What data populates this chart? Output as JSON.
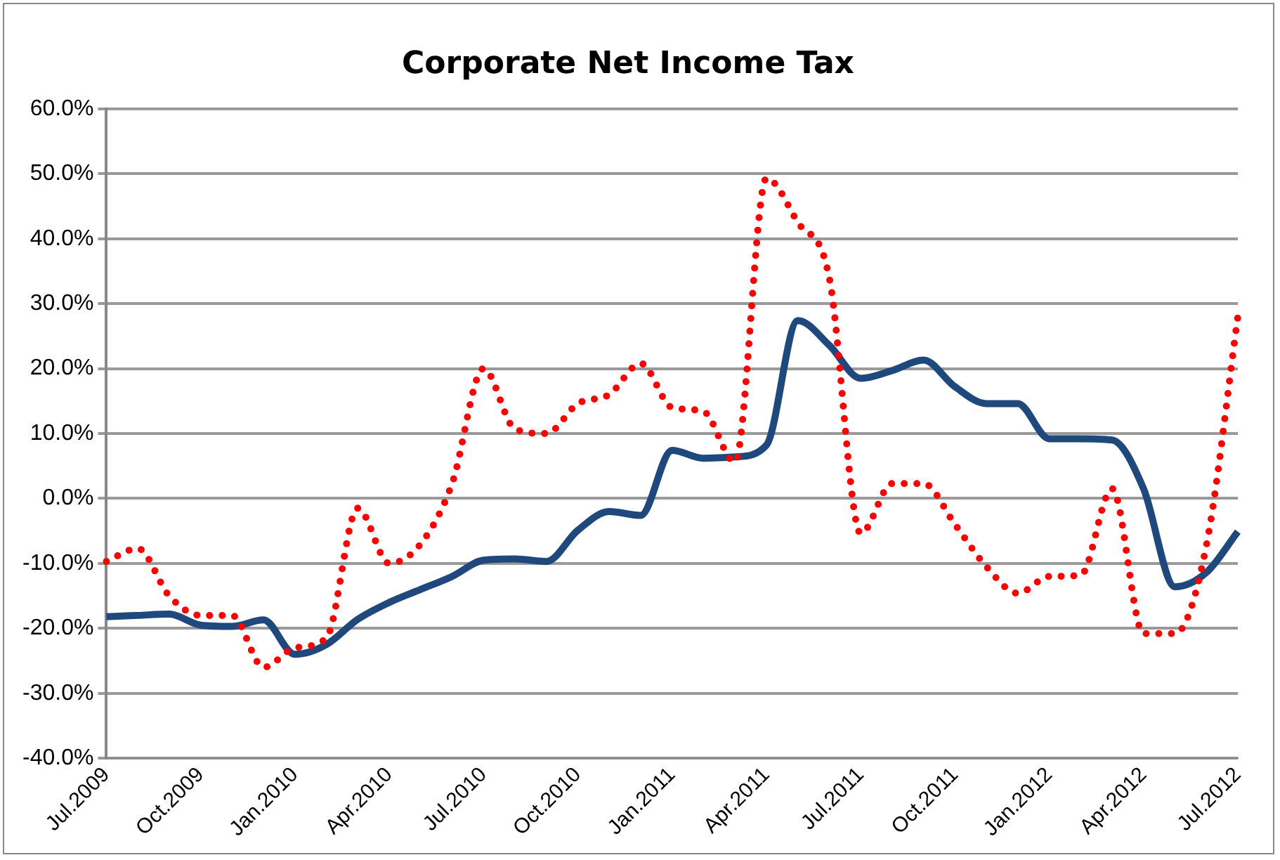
{
  "chart_data": {
    "type": "line",
    "title": "Corporate Net Income Tax",
    "categories": [
      "Jul.2009",
      null,
      null,
      "Oct.2009",
      null,
      null,
      "Jan.2010",
      null,
      null,
      "Apr.2010",
      null,
      null,
      "Jul.2010",
      null,
      null,
      "Oct.2010",
      null,
      null,
      "Jan.2011",
      null,
      null,
      "Apr.2011",
      null,
      null,
      "Jul.2011",
      null,
      null,
      "Oct.2011",
      null,
      null,
      "Jan.2012",
      null,
      null,
      "Apr.2012",
      null,
      null,
      "Jul.2012"
    ],
    "series": [
      {
        "color": "#1f497d",
        "line_style": "solid",
        "values": [
          -18.2,
          -18,
          -17.8,
          -19.5,
          -19.7,
          -18.7,
          -24,
          -22.5,
          -18.6,
          -16,
          -14,
          -12,
          -9.5,
          -9.3,
          -9.7,
          -4.9,
          -2,
          -2.6,
          7.4,
          6.2,
          6.4,
          8.2,
          27.4,
          23.6,
          18.5,
          19.7,
          21.3,
          17.2,
          14.6,
          14.6,
          9.2,
          9.2,
          9,
          1.5,
          -13.6,
          -11.4,
          -5.1
        ]
      },
      {
        "color": "#ff0000",
        "line_style": "dotted",
        "values": [
          -9.7,
          -7.7,
          -15,
          -18,
          -18,
          -26,
          -23,
          -21.5,
          -1.5,
          -10,
          -7,
          2.3,
          20,
          10.7,
          10,
          14.6,
          16,
          20.8,
          14,
          13.4,
          5.6,
          49.3,
          42.5,
          34,
          -5.4,
          2.3,
          2.3,
          -4,
          -10.5,
          -14.6,
          -12,
          -11.8,
          1.5,
          -20.8,
          -20.8,
          -7.2,
          28
        ]
      }
    ],
    "ylim": [
      -40,
      60
    ],
    "yticks": [
      {
        "value": -40,
        "label": "-40.0%"
      },
      {
        "value": -30,
        "label": "-30.0%"
      },
      {
        "value": -20,
        "label": "-20.0%"
      },
      {
        "value": -10,
        "label": "-10.0%"
      },
      {
        "value": 0,
        "label": "0.0%"
      },
      {
        "value": 10,
        "label": "10.0%"
      },
      {
        "value": 20,
        "label": "20.0%"
      },
      {
        "value": 30,
        "label": "30.0%"
      },
      {
        "value": 40,
        "label": "40.0%"
      },
      {
        "value": 50,
        "label": "50.0%"
      },
      {
        "value": 60,
        "label": "60.0%"
      }
    ],
    "grid": "y",
    "legend": false,
    "marker": "none"
  }
}
